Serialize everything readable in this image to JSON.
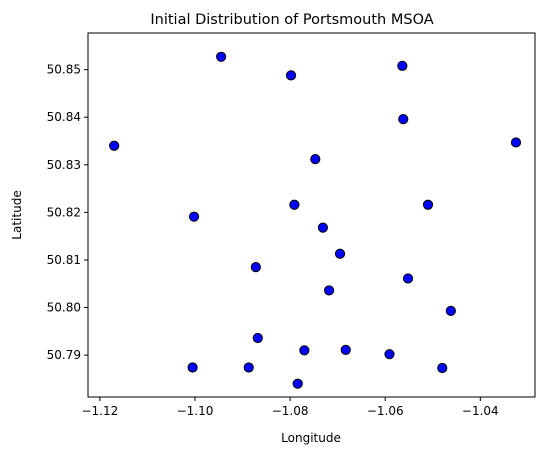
{
  "chart_data": {
    "type": "scatter",
    "title": "Initial Distribution of Portsmouth MSOA",
    "xlabel": "Longitude",
    "ylabel": "Latitude",
    "xlim": [
      -1.1225,
      -1.0285
    ],
    "ylim": [
      50.7812,
      50.8577
    ],
    "xticks": [
      -1.12,
      -1.1,
      -1.08,
      -1.06,
      -1.04
    ],
    "xtick_labels": [
      "−1.12",
      "−1.10",
      "−1.08",
      "−1.06",
      "−1.04"
    ],
    "yticks": [
      50.79,
      50.8,
      50.81,
      50.82,
      50.83,
      50.84,
      50.85
    ],
    "ytick_labels": [
      "50.79",
      "50.80",
      "50.81",
      "50.82",
      "50.83",
      "50.84",
      "50.85"
    ],
    "grid": false,
    "marker_fill": "#0000ff",
    "marker_edge": "#000000",
    "points": [
      {
        "x": -1.117,
        "y": 50.834
      },
      {
        "x": -1.0945,
        "y": 50.8527
      },
      {
        "x": -1.0798,
        "y": 50.8488
      },
      {
        "x": -1.0564,
        "y": 50.8508
      },
      {
        "x": -1.0562,
        "y": 50.8396
      },
      {
        "x": -1.0325,
        "y": 50.8347
      },
      {
        "x": -1.0747,
        "y": 50.8312
      },
      {
        "x": -1.1002,
        "y": 50.8191
      },
      {
        "x": -1.0791,
        "y": 50.8216
      },
      {
        "x": -1.051,
        "y": 50.8216
      },
      {
        "x": -1.0731,
        "y": 50.8168
      },
      {
        "x": -1.0695,
        "y": 50.8113
      },
      {
        "x": -1.0872,
        "y": 50.8085
      },
      {
        "x": -1.0718,
        "y": 50.8036
      },
      {
        "x": -1.0552,
        "y": 50.8061
      },
      {
        "x": -1.0462,
        "y": 50.7993
      },
      {
        "x": -1.0868,
        "y": 50.7936
      },
      {
        "x": -1.077,
        "y": 50.791
      },
      {
        "x": -1.0683,
        "y": 50.7911
      },
      {
        "x": -1.0591,
        "y": 50.7902
      },
      {
        "x": -1.1005,
        "y": 50.7874
      },
      {
        "x": -1.0887,
        "y": 50.7874
      },
      {
        "x": -1.048,
        "y": 50.7873
      },
      {
        "x": -1.0784,
        "y": 50.784
      }
    ]
  }
}
